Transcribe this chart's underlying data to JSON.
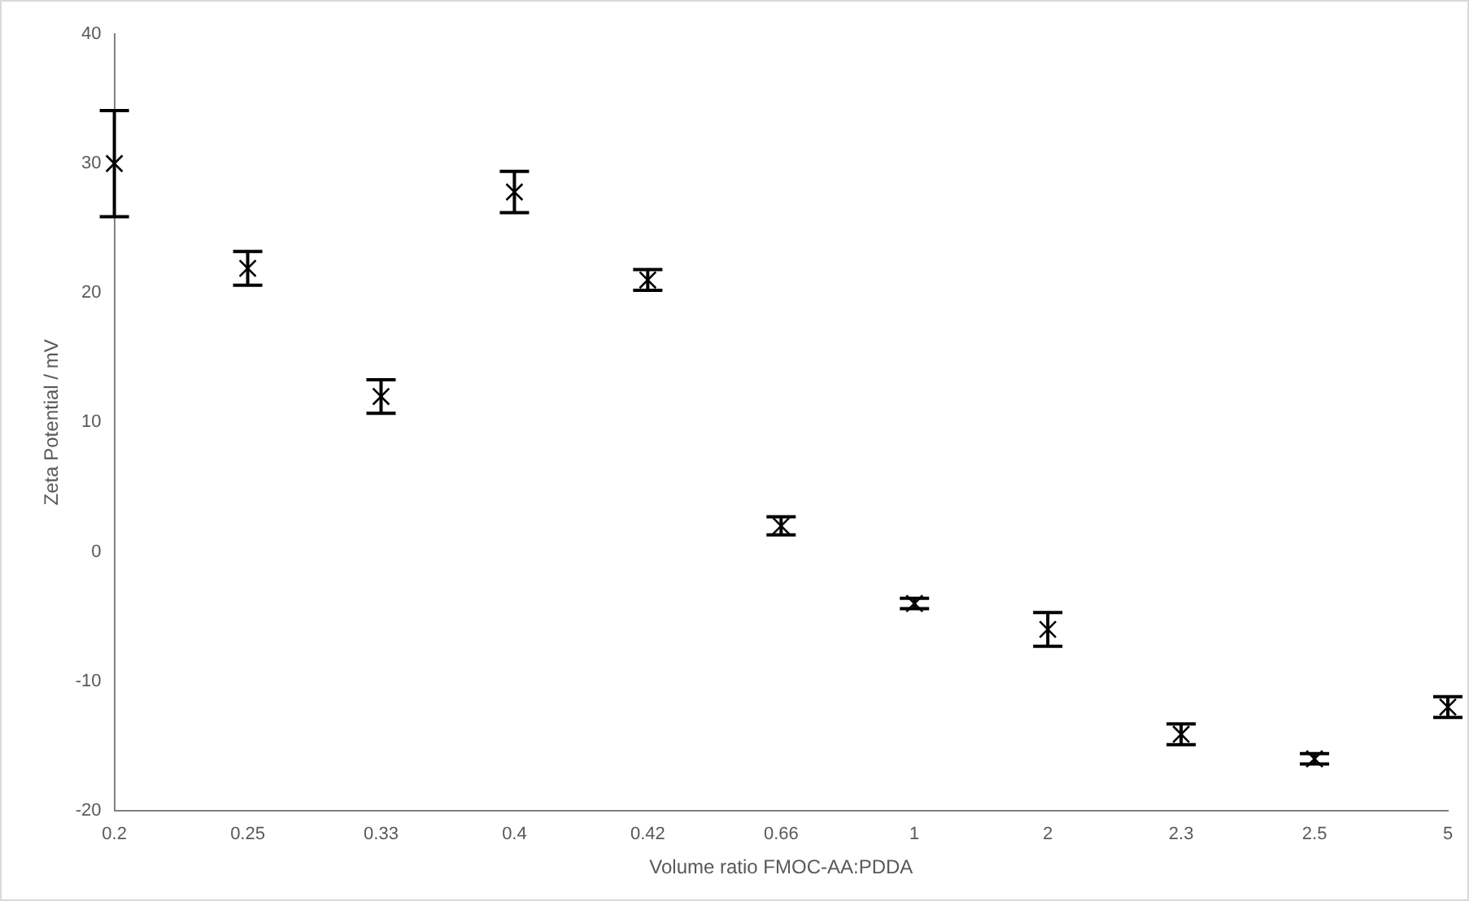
{
  "chart_data": {
    "type": "scatter",
    "xlabel": "Volume ratio FMOC-AA:PDDA",
    "ylabel": "Zeta Potential / mV",
    "categories": [
      "0.2",
      "0.25",
      "0.33",
      "0.4",
      "0.42",
      "0.66",
      "1",
      "2",
      "2.3",
      "2.5",
      "5"
    ],
    "values": [
      30,
      21.9,
      12,
      27.8,
      21,
      2,
      -4,
      -6,
      -14.1,
      -16,
      -12
    ],
    "errors": [
      4.1,
      1.3,
      1.3,
      1.6,
      0.8,
      0.7,
      0.4,
      1.3,
      0.8,
      0.4,
      0.8
    ],
    "color": "#000000",
    "marker": "cross",
    "grid": false,
    "legend": false,
    "ylim": [
      -20,
      40
    ],
    "yticks": [
      -20,
      -10,
      0,
      10,
      20,
      30,
      40
    ]
  }
}
